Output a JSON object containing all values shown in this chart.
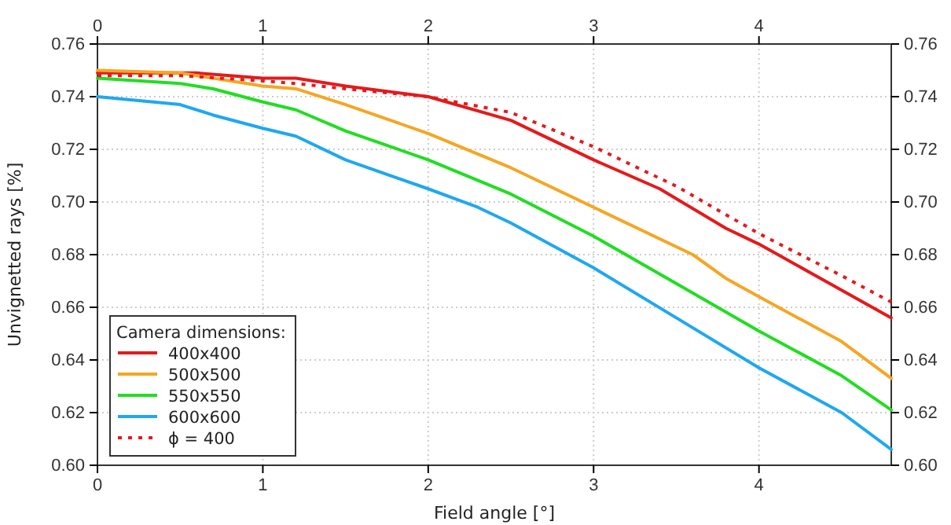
{
  "chart_data": {
    "type": "line",
    "xlabel": "Field angle [°]",
    "ylabel": "Unvignetted rays [%]",
    "legend_title": "Camera dimensions:",
    "legend": "bottom left",
    "grid": true,
    "xlim": [
      0,
      4.8
    ],
    "xticks": [
      0,
      1,
      2,
      3,
      4
    ],
    "x2lim": [
      0,
      4.8
    ],
    "x2ticks": [
      0,
      1,
      2,
      3,
      4
    ],
    "ylim": [
      0.6,
      0.76
    ],
    "yticks": [
      {
        "value": 0.6,
        "label": "0.60"
      },
      {
        "value": 0.62,
        "label": "0.62"
      },
      {
        "value": 0.64,
        "label": "0.64"
      },
      {
        "value": 0.66,
        "label": "0.66"
      },
      {
        "value": 0.68,
        "label": "0.68"
      },
      {
        "value": 0.7,
        "label": "0.70"
      },
      {
        "value": 0.72,
        "label": "0.72"
      },
      {
        "value": 0.74,
        "label": "0.74"
      },
      {
        "value": 0.76,
        "label": "0.76"
      }
    ],
    "y2lim": [
      0.6,
      0.76
    ],
    "y2ticks": [
      {
        "value": 0.6,
        "label": "0.60"
      },
      {
        "value": 0.62,
        "label": "0.62"
      },
      {
        "value": 0.64,
        "label": "0.64"
      },
      {
        "value": 0.66,
        "label": "0.66"
      },
      {
        "value": 0.68,
        "label": "0.68"
      },
      {
        "value": 0.7,
        "label": "0.70"
      },
      {
        "value": 0.72,
        "label": "0.72"
      },
      {
        "value": 0.74,
        "label": "0.74"
      },
      {
        "value": 0.76,
        "label": "0.76"
      }
    ],
    "series": [
      {
        "name": "400x400",
        "color": "#e41a1c",
        "line_style": "solid",
        "x": [
          0,
          0.6,
          1.0,
          1.2,
          1.5,
          2.0,
          2.5,
          3.0,
          3.4,
          3.8,
          4.0,
          4.4,
          4.8
        ],
        "values": [
          0.749,
          0.749,
          0.747,
          0.747,
          0.744,
          0.74,
          0.731,
          0.716,
          0.705,
          0.69,
          0.684,
          0.67,
          0.656
        ]
      },
      {
        "name": "500x500",
        "color": "#f5a623",
        "line_style": "solid",
        "x": [
          0,
          0.5,
          1.0,
          1.2,
          1.5,
          2.0,
          2.5,
          3.0,
          3.6,
          3.8,
          4.0,
          4.5,
          4.8
        ],
        "values": [
          0.75,
          0.749,
          0.744,
          0.743,
          0.737,
          0.726,
          0.713,
          0.698,
          0.68,
          0.671,
          0.664,
          0.647,
          0.633
        ]
      },
      {
        "name": "550x550",
        "color": "#22dd22",
        "line_style": "solid",
        "x": [
          0,
          0.5,
          0.7,
          1.0,
          1.2,
          1.5,
          2.0,
          2.5,
          3.0,
          3.5,
          4.0,
          4.5,
          4.8
        ],
        "values": [
          0.747,
          0.745,
          0.743,
          0.738,
          0.735,
          0.727,
          0.716,
          0.703,
          0.687,
          0.669,
          0.651,
          0.634,
          0.621
        ]
      },
      {
        "name": "600x600",
        "color": "#1fa8ee",
        "line_style": "solid",
        "x": [
          0,
          0.5,
          0.7,
          1.0,
          1.2,
          1.5,
          2.0,
          2.3,
          2.5,
          3.0,
          3.5,
          4.0,
          4.5,
          4.8
        ],
        "values": [
          0.74,
          0.737,
          0.733,
          0.728,
          0.725,
          0.716,
          0.705,
          0.698,
          0.692,
          0.675,
          0.656,
          0.637,
          0.62,
          0.606
        ]
      },
      {
        "name": "ϕ = 400",
        "color": "#e41a1c",
        "line_style": "dotted",
        "x": [
          0,
          0.5,
          1.0,
          1.2,
          1.5,
          2.0,
          2.5,
          3.0,
          3.5,
          4.0,
          4.5,
          4.8
        ],
        "values": [
          0.748,
          0.748,
          0.746,
          0.745,
          0.743,
          0.74,
          0.734,
          0.721,
          0.706,
          0.688,
          0.672,
          0.662
        ]
      }
    ]
  }
}
